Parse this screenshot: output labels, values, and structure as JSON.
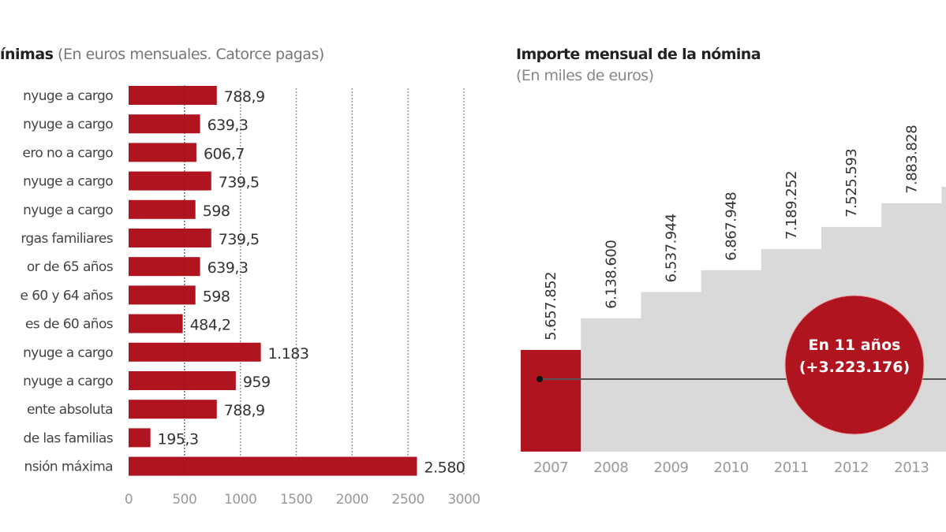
{
  "colors": {
    "bar": "#b0141f",
    "step_fill": "#d9d9d9",
    "line": "#555555",
    "grid": "#999999"
  },
  "chart_data": [
    {
      "type": "bar",
      "orientation": "horizontal",
      "title": "ínimas",
      "subtitle": "(En euros mensuales. Catorce pagas)",
      "categories": [
        "nyuge a cargo",
        "nyuge a cargo",
        "ero no a cargo",
        "nyuge a cargo",
        "nyuge a cargo",
        "rgas familiares",
        "or de 65 años",
        "e 60 y 64 años",
        "es de 60 años",
        "nyuge a cargo",
        "nyuge a cargo",
        "ente absoluta",
        "de las familias",
        "nsión máxima"
      ],
      "values": [
        788.9,
        639.3,
        606.7,
        739.5,
        598,
        739.5,
        639.3,
        598,
        484.2,
        1183,
        959,
        788.9,
        195.3,
        2580
      ],
      "value_labels": [
        "788,9",
        "639,3",
        "606,7",
        "739,5",
        "598",
        "739,5",
        "639,3",
        "598",
        "484,2",
        "1.183",
        "959",
        "788,9",
        "195,3",
        "2.580"
      ],
      "xlim": [
        0,
        3000
      ],
      "xticks": [
        0,
        500,
        1000,
        1500,
        2000,
        2500,
        3000
      ],
      "xtick_labels": [
        "0",
        "500",
        "1000",
        "1500",
        "2000",
        "2500",
        "3000"
      ],
      "grid": "vertical dotted"
    },
    {
      "type": "area",
      "style": "step",
      "title": "Importe mensual de la nómina",
      "subtitle": "(En miles de euros)",
      "categories": [
        "2007",
        "2008",
        "2009",
        "2010",
        "2011",
        "2012",
        "2013"
      ],
      "values": [
        5657.852,
        6138.6,
        6537.944,
        6867.948,
        7189.252,
        7525.593,
        7883.828
      ],
      "value_labels": [
        "5.657.852",
        "6.138.600",
        "6.537.944",
        "6.867.948",
        "7.189.252",
        "7.525.593",
        "7.883.828"
      ],
      "highlight": "2007",
      "annotation": {
        "line1": "En 11 años",
        "line2": "(+3.223.176)"
      }
    }
  ]
}
